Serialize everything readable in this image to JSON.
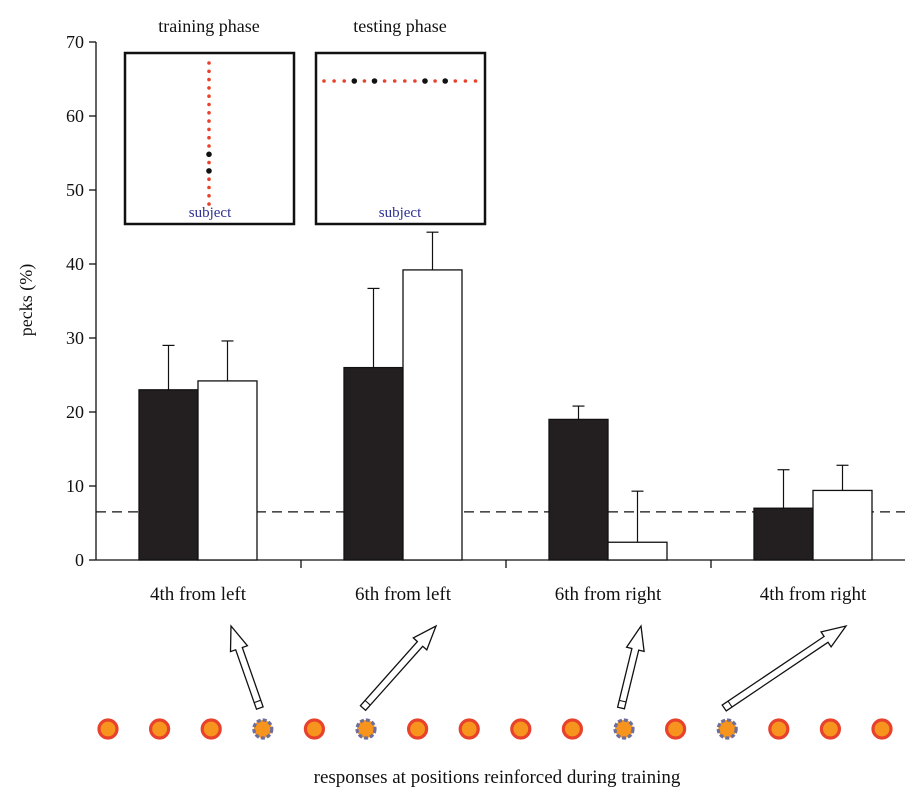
{
  "chart_data": {
    "type": "bar",
    "ylabel": "pecks (%)",
    "xlabel": "responses at positions reinforced during training",
    "ylim": [
      0,
      70
    ],
    "yticks": [
      0,
      10,
      20,
      30,
      40,
      50,
      60,
      70
    ],
    "grid": false,
    "categories": [
      "4th from left",
      "6th from left",
      "6th from right",
      "4th from right"
    ],
    "series": [
      {
        "color": "#231f20",
        "values": [
          23.0,
          26.0,
          19.0,
          7.0
        ],
        "error": [
          6.0,
          10.7,
          1.8,
          5.2
        ]
      },
      {
        "color": "#ffffff",
        "values": [
          24.2,
          39.2,
          2.4,
          9.4
        ],
        "error": [
          5.4,
          5.1,
          6.9,
          3.4
        ]
      }
    ],
    "reference_line": {
      "value": 6.5,
      "style": "dashed"
    },
    "insets": [
      {
        "title": "training phase",
        "caption": "subject"
      },
      {
        "title": "testing phase",
        "caption": "subject"
      }
    ],
    "positions": {
      "count": 16,
      "marked": [
        4,
        6,
        11,
        13
      ],
      "fill_color": "#f7941d",
      "ring_color": "#e8412c",
      "marked_ring_color": "#6d6e9c"
    }
  }
}
